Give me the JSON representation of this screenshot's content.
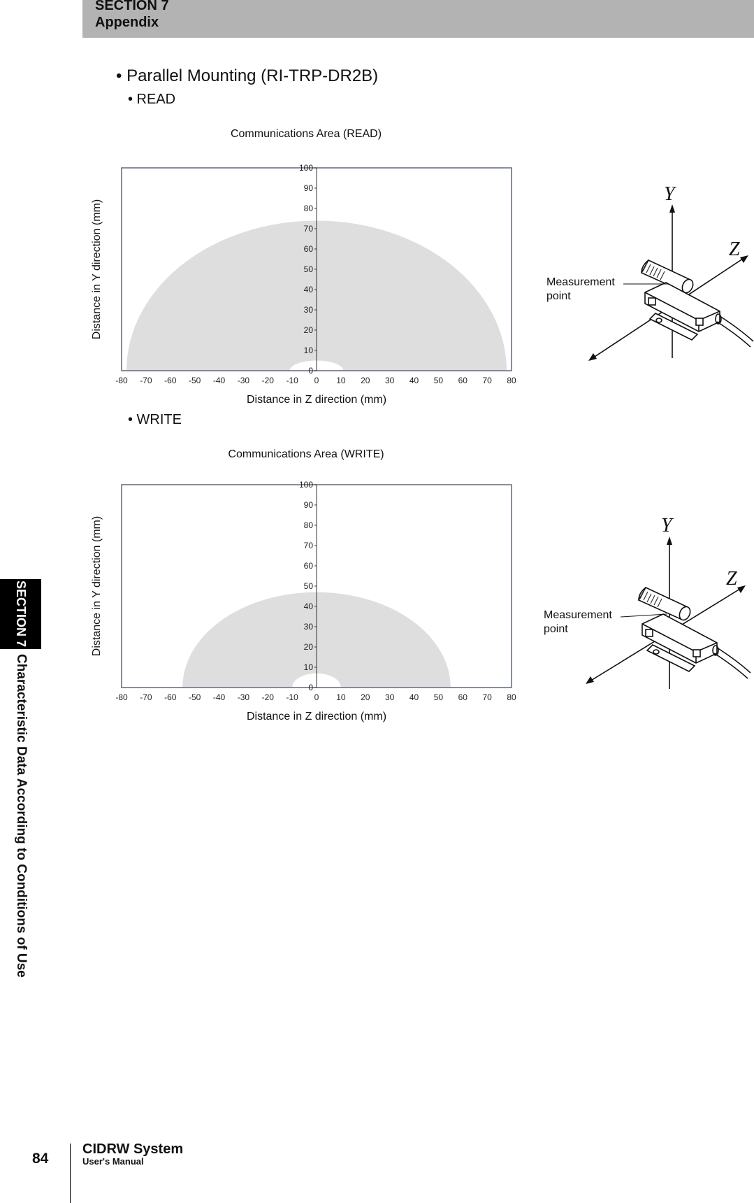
{
  "header": {
    "section": "SECTION 7",
    "title": "Appendix"
  },
  "side_tab": {
    "section": "SECTION 7",
    "title": "Characteristic Data According to Conditions of Use"
  },
  "content": {
    "heading": "• Parallel Mounting (RI-TRP-DR2B)",
    "read_label": "• READ",
    "write_label": "• WRITE",
    "measurement_point_line1": "Measurement",
    "measurement_point_line2": "point",
    "axis_y_letter": "Y",
    "axis_z_letter": "Z"
  },
  "chart_data": [
    {
      "type": "area",
      "title": "Communications Area (READ)",
      "xlabel": "Distance in Z direction (mm)",
      "ylabel": "Distance in Y direction (mm)",
      "xlim": [
        -80,
        80
      ],
      "ylim": [
        0,
        100
      ],
      "xticks": [
        -80,
        -70,
        -60,
        -50,
        -40,
        -30,
        -20,
        -10,
        0,
        10,
        20,
        30,
        40,
        50,
        60,
        70,
        80
      ],
      "yticks": [
        0,
        10,
        20,
        30,
        40,
        50,
        60,
        70,
        80,
        90,
        100
      ],
      "region": {
        "outer_half_width": 78,
        "outer_height": 74,
        "inner_half_width": 11,
        "inner_height": 5,
        "color": "#dedede"
      },
      "grid": false
    },
    {
      "type": "area",
      "title": "Communications Area (WRITE)",
      "xlabel": "Distance in Z direction (mm)",
      "ylabel": "Distance in Y direction (mm)",
      "xlim": [
        -80,
        80
      ],
      "ylim": [
        0,
        100
      ],
      "xticks": [
        -80,
        -70,
        -60,
        -50,
        -40,
        -30,
        -20,
        -10,
        0,
        10,
        20,
        30,
        40,
        50,
        60,
        70,
        80
      ],
      "yticks": [
        0,
        10,
        20,
        30,
        40,
        50,
        60,
        70,
        80,
        90,
        100
      ],
      "region": {
        "outer_half_width": 55,
        "outer_height": 47,
        "inner_half_width": 10,
        "inner_height": 7,
        "color": "#dedede"
      },
      "grid": false
    }
  ],
  "footer": {
    "page_number": "84",
    "title": "CIDRW System",
    "subtitle": "User's Manual"
  }
}
